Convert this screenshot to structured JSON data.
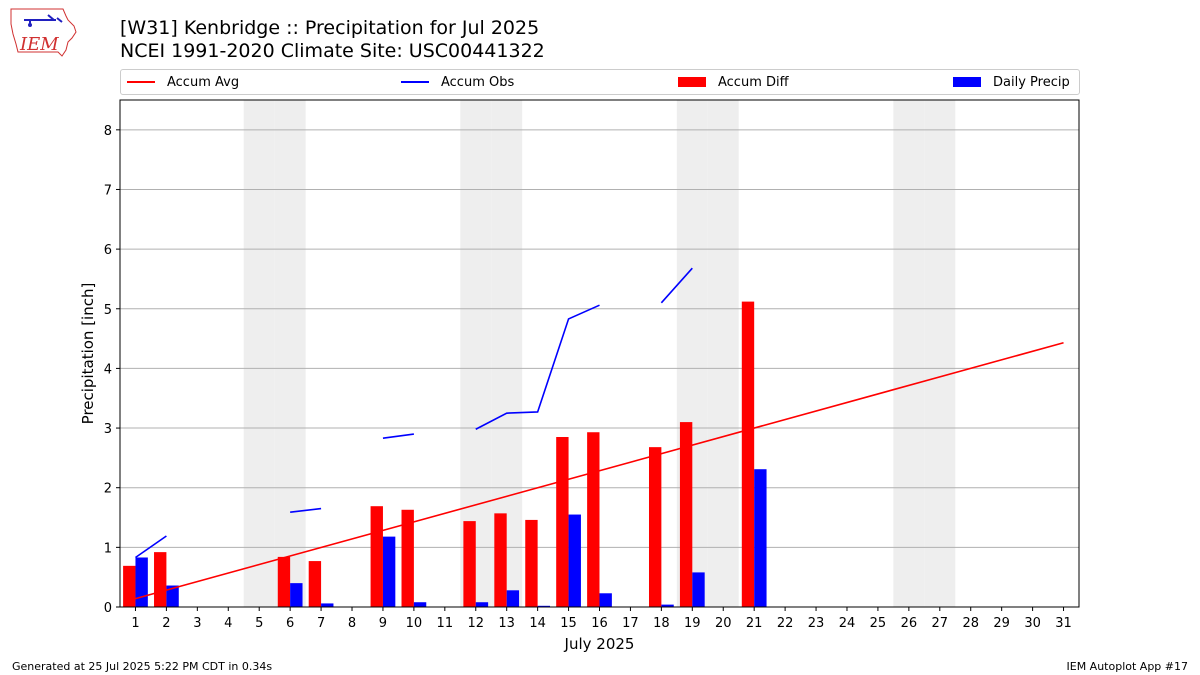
{
  "header": {
    "title_line1": "[W31] Kenbridge :: Precipitation for Jul 2025",
    "title_line2": "NCEI 1991-2020 Climate Site: USC00441322",
    "logo_text": "IEM"
  },
  "footer": {
    "generated": "Generated at 25 Jul 2025 5:22 PM CDT in 0.34s",
    "app": "IEM Autoplot App #17"
  },
  "colors": {
    "avg": "#ff0000",
    "obs": "#0000ff",
    "diff": "#ff0000",
    "daily": "#0000ff",
    "weekend": "#eeeeee",
    "grid": "#b0b0b0"
  },
  "chart_data": {
    "type": "bar",
    "title": "[W31] Kenbridge :: Precipitation for Jul 2025",
    "xlabel": "July 2025",
    "ylabel": "Precipitation [inch]",
    "ylim": [
      0,
      8.5
    ],
    "yticks": [
      0,
      1,
      2,
      3,
      4,
      5,
      6,
      7,
      8
    ],
    "grid": true,
    "legend_position": "top",
    "days": [
      1,
      2,
      3,
      4,
      5,
      6,
      7,
      8,
      9,
      10,
      11,
      12,
      13,
      14,
      15,
      16,
      17,
      18,
      19,
      20,
      21,
      22,
      23,
      24,
      25,
      26,
      27,
      28,
      29,
      30,
      31
    ],
    "weekend_days": [
      5,
      6,
      12,
      13,
      19,
      20,
      26,
      27
    ],
    "legend": [
      "Accum Avg",
      "Accum Obs",
      "Accum Diff",
      "Daily Precip"
    ],
    "series": [
      {
        "name": "Accum Avg",
        "kind": "line",
        "start": [
          1,
          0.14
        ],
        "end": [
          31,
          4.43
        ]
      },
      {
        "name": "Accum Obs",
        "kind": "line-segments",
        "segments": [
          [
            [
              1,
              0.83
            ],
            [
              2,
              1.19
            ]
          ],
          [
            [
              6,
              1.59
            ],
            [
              7,
              1.65
            ]
          ],
          [
            [
              9,
              2.83
            ],
            [
              10,
              2.9
            ]
          ],
          [
            [
              12,
              2.98
            ],
            [
              13,
              3.25
            ],
            [
              14,
              3.27
            ],
            [
              15,
              4.83
            ],
            [
              16,
              5.06
            ]
          ],
          [
            [
              18,
              5.1
            ],
            [
              19,
              5.68
            ]
          ]
        ]
      },
      {
        "name": "Accum Diff",
        "kind": "bar",
        "values": [
          [
            1,
            0.69
          ],
          [
            2,
            0.92
          ],
          [
            6,
            0.84
          ],
          [
            7,
            0.77
          ],
          [
            9,
            1.69
          ],
          [
            10,
            1.63
          ],
          [
            12,
            1.44
          ],
          [
            13,
            1.57
          ],
          [
            14,
            1.46
          ],
          [
            15,
            2.85
          ],
          [
            16,
            2.93
          ],
          [
            18,
            2.68
          ],
          [
            19,
            3.1
          ],
          [
            21,
            5.12
          ]
        ]
      },
      {
        "name": "Daily Precip",
        "kind": "bar",
        "values": [
          [
            1,
            0.83
          ],
          [
            2,
            0.36
          ],
          [
            6,
            0.4
          ],
          [
            7,
            0.06
          ],
          [
            9,
            1.18
          ],
          [
            10,
            0.08
          ],
          [
            12,
            0.08
          ],
          [
            13,
            0.28
          ],
          [
            14,
            0.02
          ],
          [
            15,
            1.55
          ],
          [
            16,
            0.23
          ],
          [
            18,
            0.04
          ],
          [
            19,
            0.58
          ],
          [
            21,
            2.31
          ]
        ]
      }
    ]
  }
}
